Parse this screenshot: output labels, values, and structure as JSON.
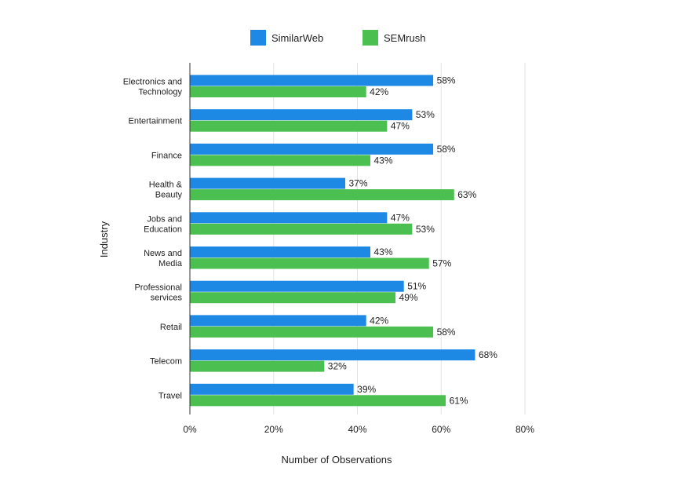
{
  "chart_data": {
    "type": "bar",
    "orientation": "horizontal",
    "title": "",
    "xlabel": "Number of Observations",
    "ylabel": "Industry",
    "xlim": [
      0,
      80
    ],
    "x_ticks": [
      "0%",
      "20%",
      "40%",
      "60%",
      "80%"
    ],
    "grid": true,
    "legend_position": "top",
    "categories": [
      "Electronics and Technology",
      "Entertainment",
      "Finance",
      "Health & Beauty",
      "Jobs and Education",
      "News and Media",
      "Professional services",
      "Retail",
      "Telecom",
      "Travel"
    ],
    "series": [
      {
        "name": "SimilarWeb",
        "color": "#1e88e5",
        "values": [
          58,
          53,
          58,
          37,
          47,
          43,
          51,
          42,
          68,
          39
        ]
      },
      {
        "name": "SEMrush",
        "color": "#4bbf4f",
        "values": [
          42,
          47,
          43,
          63,
          53,
          57,
          49,
          58,
          32,
          61
        ]
      }
    ],
    "value_suffix": "%"
  }
}
